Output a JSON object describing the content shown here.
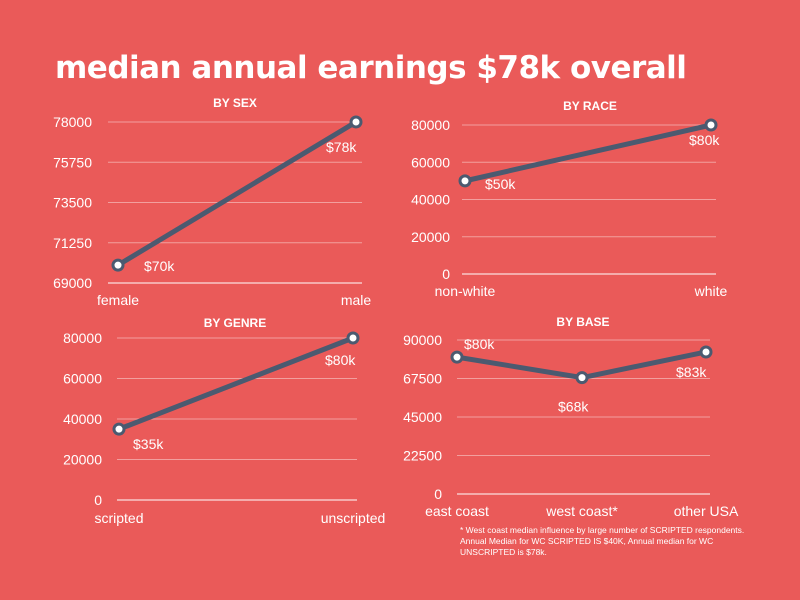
{
  "title": "median annual earnings $78k overall",
  "footnote": "* West coast median influence by  large number of SCRIPTED respondents. Annual Median for WC SCRIPTED IS $40K, Annual median for WC UNSCRIPTED is $78k.",
  "colors": {
    "background": "#ea5a59",
    "line": "#4b5a70",
    "marker_fill": "#ffffff",
    "text": "#ffffff",
    "grid": "#f29f9e"
  },
  "chart_data": [
    {
      "id": "sex",
      "type": "line",
      "title": "BY SEX",
      "categories": [
        "female",
        "male"
      ],
      "values": [
        70000,
        78000
      ],
      "labels": [
        "$70k",
        "$78k"
      ],
      "yticks": [
        "69000",
        "71250",
        "73500",
        "75750",
        "78000"
      ],
      "ylim": [
        69000,
        78000
      ]
    },
    {
      "id": "race",
      "type": "line",
      "title": "BY RACE",
      "categories": [
        "non-white",
        "white"
      ],
      "values": [
        50000,
        80000
      ],
      "labels": [
        "$50k",
        "$80k"
      ],
      "yticks": [
        "0",
        "20000",
        "40000",
        "60000",
        "80000"
      ],
      "ylim": [
        0,
        80000
      ]
    },
    {
      "id": "genre",
      "type": "line",
      "title": "BY GENRE",
      "categories": [
        "scripted",
        "unscripted"
      ],
      "values": [
        35000,
        80000
      ],
      "labels": [
        "$35k",
        "$80k"
      ],
      "yticks": [
        "0",
        "20000",
        "40000",
        "60000",
        "80000"
      ],
      "ylim": [
        0,
        80000
      ]
    },
    {
      "id": "base",
      "type": "line",
      "title": "BY BASE",
      "categories": [
        "east coast",
        "west coast*",
        "other USA"
      ],
      "values": [
        80000,
        68000,
        83000
      ],
      "labels": [
        "$80k",
        "$68k",
        "$83k"
      ],
      "yticks": [
        "0",
        "22500",
        "45000",
        "67500",
        "90000"
      ],
      "ylim": [
        0,
        90000
      ]
    }
  ]
}
